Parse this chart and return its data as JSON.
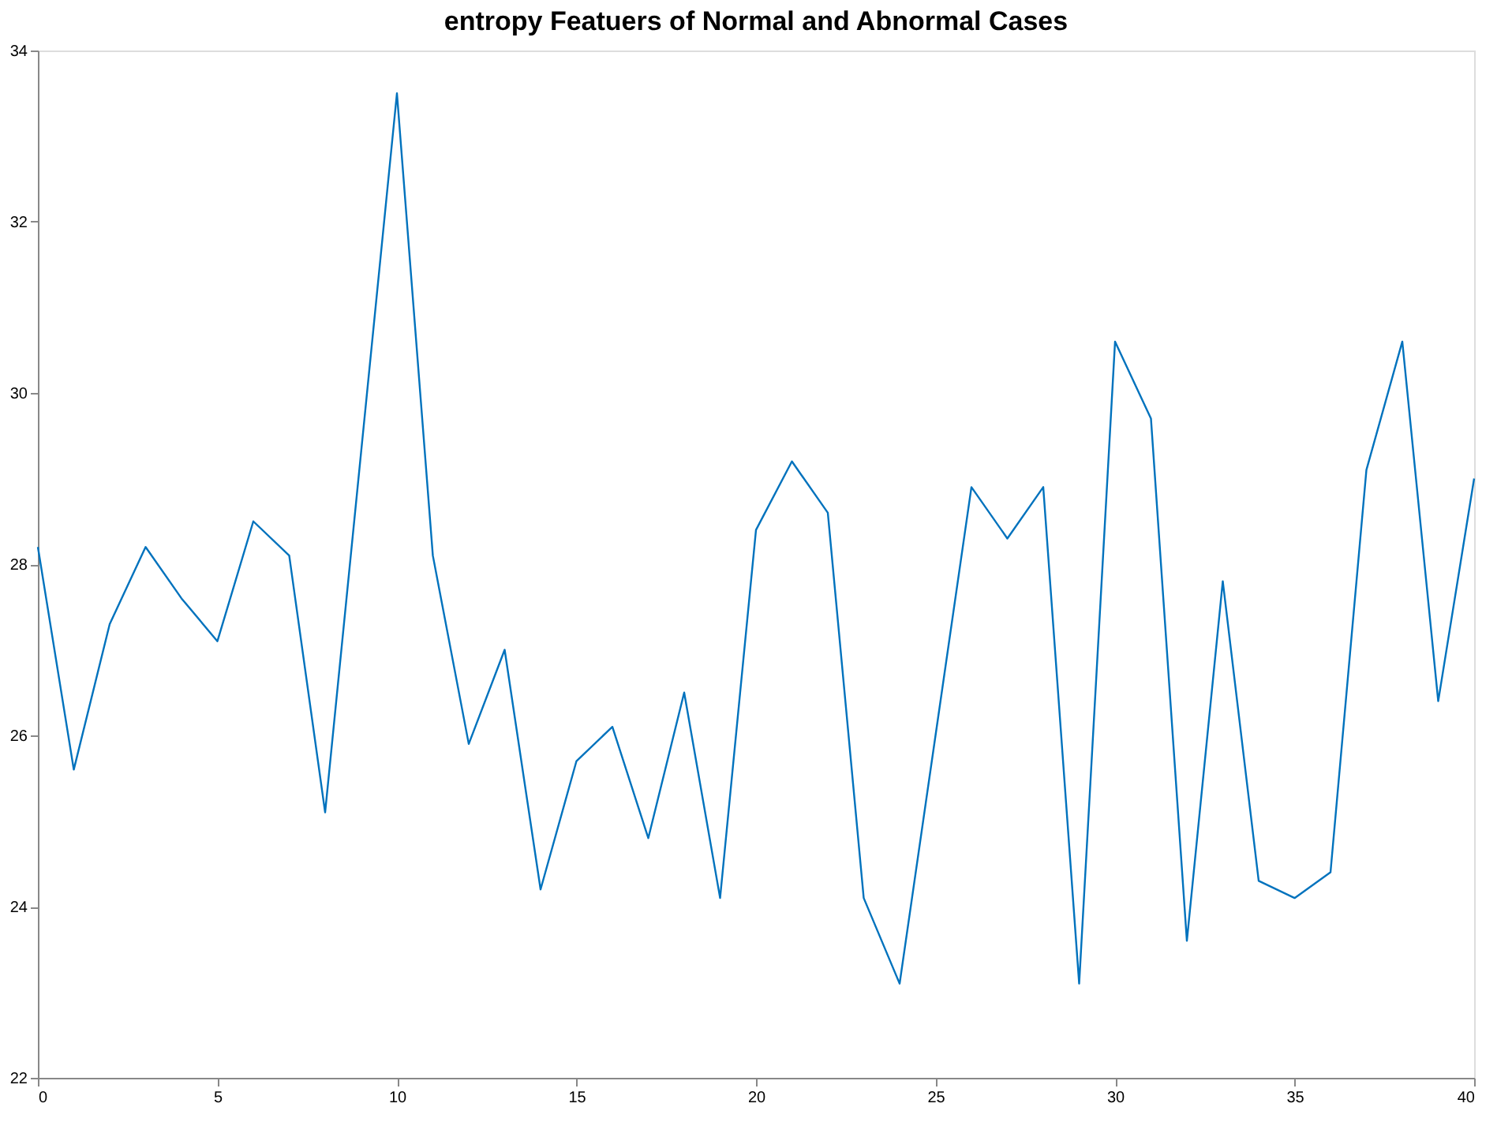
{
  "chart_data": {
    "type": "line",
    "title": "entropy Featuers of Normal and Abnormal Cases",
    "x": [
      0,
      1,
      2,
      3,
      4,
      5,
      6,
      7,
      8,
      9,
      10,
      11,
      12,
      13,
      14,
      15,
      16,
      17,
      18,
      19,
      20,
      21,
      22,
      23,
      24,
      25,
      26,
      27,
      28,
      29,
      30,
      31,
      32,
      33,
      34,
      35,
      36,
      37,
      38,
      39,
      40
    ],
    "series": [
      {
        "color": "#0072bd",
        "values": [
          28.2,
          25.6,
          27.3,
          28.2,
          27.6,
          27.1,
          28.5,
          28.1,
          25.1,
          29.3,
          33.5,
          28.1,
          25.9,
          27.0,
          24.2,
          25.7,
          26.1,
          24.8,
          26.5,
          24.1,
          28.4,
          29.2,
          28.6,
          24.1,
          23.1,
          26.0,
          28.9,
          28.3,
          28.9,
          23.1,
          30.6,
          29.7,
          23.6,
          27.8,
          24.3,
          24.1,
          24.4,
          29.1,
          30.6,
          26.4,
          29.0
        ]
      }
    ],
    "xlim": [
      0,
      40
    ],
    "xticks": [
      0,
      5,
      10,
      15,
      20,
      25,
      30,
      35,
      40
    ],
    "ylim": [
      22,
      34
    ],
    "yticks": [
      22,
      24,
      26,
      28,
      30,
      32,
      34
    ],
    "grid": false,
    "marker": "none",
    "line_style": "solid"
  }
}
